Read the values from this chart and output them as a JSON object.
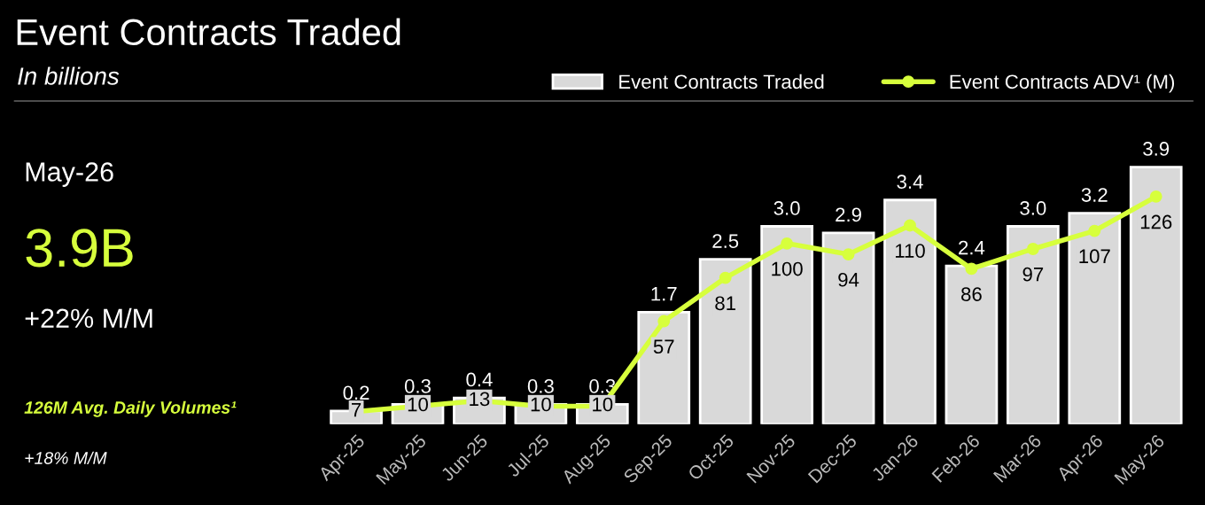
{
  "chart_data": {
    "type": "bar",
    "title": "Event Contracts Traded",
    "subtitle": "In billions",
    "categories": [
      "Apr-25",
      "May-25",
      "Jun-25",
      "Jul-25",
      "Aug-25",
      "Sep-25",
      "Oct-25",
      "Nov-25",
      "Dec-25",
      "Jan-26",
      "Feb-26",
      "Mar-26",
      "Apr-26",
      "May-26"
    ],
    "series": [
      {
        "name": "Event Contracts Traded",
        "color": "#d9d9d9",
        "values": [
          0.2,
          0.3,
          0.4,
          0.3,
          0.3,
          1.7,
          2.5,
          3.0,
          2.9,
          3.4,
          2.4,
          3.0,
          3.2,
          3.9
        ],
        "value_labels": [
          "0.2",
          "0.3",
          "0.4",
          "0.3",
          "0.3",
          "1.7",
          "2.5",
          "3.0",
          "2.9",
          "3.4",
          "2.4",
          "3.0",
          "3.2",
          "3.9"
        ]
      },
      {
        "name": "Event Contracts ADV¹ (M)",
        "type": "line",
        "axis": "y2",
        "color": "#d7ff3c",
        "values": [
          7,
          10,
          13,
          10,
          10,
          57,
          81,
          100,
          94,
          110,
          86,
          97,
          107,
          126
        ]
      }
    ],
    "data_labels": true,
    "marker": "circle",
    "legend": "top right",
    "tick_labels": "x",
    "annotations": [
      "May-26",
      "3.9B",
      "+22% M/M",
      "126M Avg. Daily Volumes¹",
      "+18% M/M"
    ]
  }
}
